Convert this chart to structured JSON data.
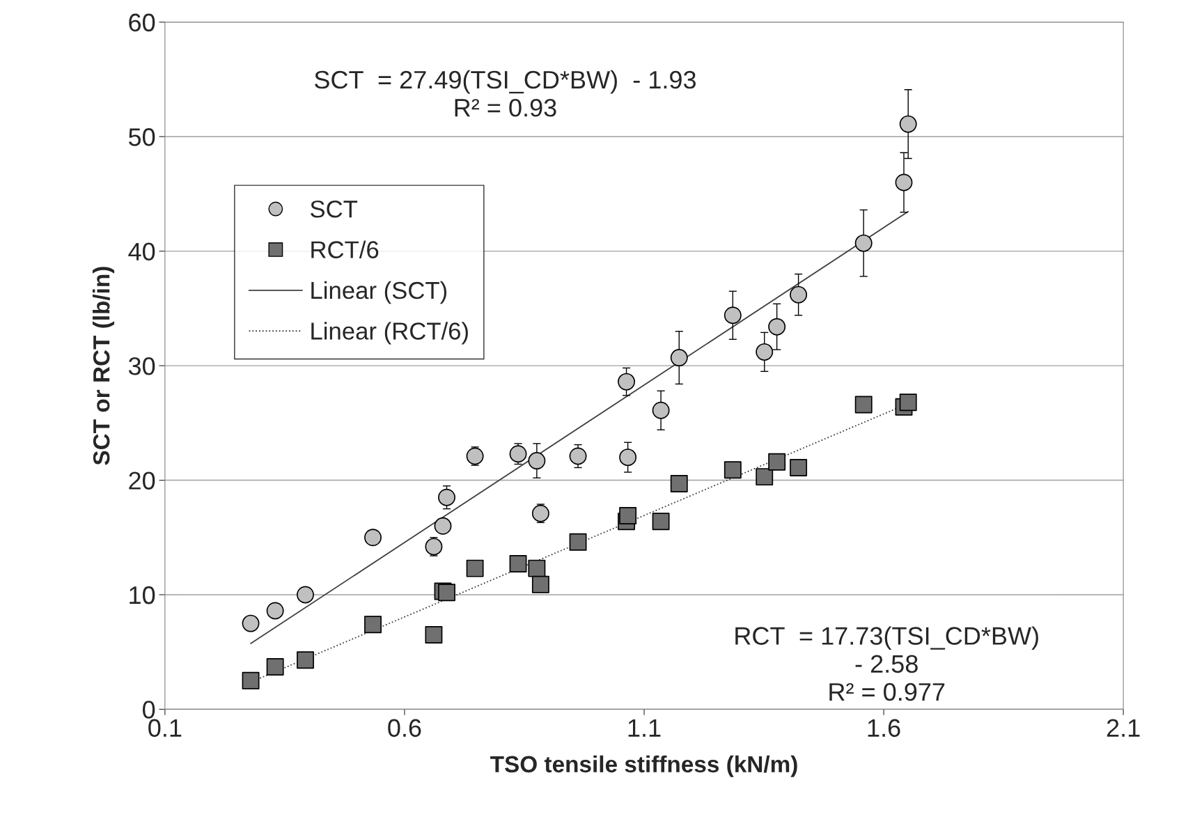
{
  "chart_data": {
    "type": "scatter",
    "xlabel": "TSO tensile stiffness (kN/m)",
    "ylabel": "SCT or RCT (lb/in)",
    "xlim": [
      0.1,
      2.1
    ],
    "xticks": [
      {
        "value": 0.1,
        "label": "0.1"
      },
      {
        "value": 0.6,
        "label": "0.6"
      },
      {
        "value": 1.1,
        "label": "1.1"
      },
      {
        "value": 1.6,
        "label": "1.6"
      },
      {
        "value": 2.1,
        "label": "2.1"
      }
    ],
    "ylim": [
      0,
      60
    ],
    "yticks": [
      0,
      10,
      20,
      30,
      40,
      50,
      60
    ],
    "grid": "y",
    "legend": "top left",
    "annotations": [
      "SCT  = 27.49(TSI_CD*BW)  - 1.93\nR² = 0.93",
      "RCT  = 17.73(TSI_CD*BW)\n- 2.58\nR² = 0.977"
    ],
    "series": [
      {
        "type": "scatter",
        "name": "SCT",
        "color": "#c0c0c0",
        "marker": "circle",
        "x": [
          0.279,
          0.33,
          0.393,
          0.534,
          0.661,
          0.68,
          0.688,
          0.747,
          0.837,
          0.876,
          0.884,
          0.962,
          1.063,
          1.066,
          1.135,
          1.173,
          1.285,
          1.351,
          1.377,
          1.422,
          1.558,
          1.642,
          1.651
        ],
        "values": [
          7.5,
          8.6,
          10.0,
          15.0,
          14.2,
          16.0,
          18.5,
          22.1,
          22.3,
          21.7,
          17.1,
          22.1,
          28.6,
          22.0,
          26.1,
          30.7,
          34.4,
          31.2,
          33.4,
          36.2,
          40.7,
          46.0,
          51.1
        ],
        "errors": [
          null,
          null,
          null,
          null,
          0.8,
          null,
          1.0,
          0.8,
          0.9,
          1.5,
          0.8,
          1.0,
          1.2,
          1.3,
          1.7,
          2.3,
          2.1,
          1.7,
          2.0,
          1.8,
          2.9,
          2.6,
          3.0
        ]
      },
      {
        "type": "scatter",
        "name": "RCT/6",
        "color": "#707070",
        "marker": "square",
        "x": [
          0.279,
          0.33,
          0.393,
          0.534,
          0.661,
          0.68,
          0.688,
          0.747,
          0.837,
          0.876,
          0.884,
          0.962,
          1.063,
          1.066,
          1.135,
          1.173,
          1.285,
          1.351,
          1.377,
          1.422,
          1.558,
          1.642,
          1.651
        ],
        "values": [
          2.5,
          3.7,
          4.3,
          7.4,
          6.5,
          10.3,
          10.2,
          12.3,
          12.7,
          12.3,
          10.9,
          14.6,
          16.4,
          16.9,
          16.4,
          19.7,
          20.9,
          20.3,
          21.6,
          21.1,
          26.6,
          26.4,
          26.8
        ],
        "errors": [
          null,
          null,
          null,
          null,
          null,
          null,
          null,
          null,
          null,
          null,
          null,
          null,
          null,
          null,
          null,
          null,
          0.6,
          null,
          null,
          0.7,
          null,
          null,
          null
        ]
      },
      {
        "type": "line",
        "name": "Linear (SCT)",
        "color": "#404040",
        "line_style": "solid",
        "x": [
          0.279,
          1.651
        ],
        "values": [
          5.74,
          43.46
        ]
      },
      {
        "type": "line",
        "name": "Linear (RCT/6)",
        "color": "#404040",
        "line_style": "dotted",
        "x": [
          0.279,
          1.651
        ],
        "values": [
          2.37,
          26.69
        ]
      }
    ]
  }
}
